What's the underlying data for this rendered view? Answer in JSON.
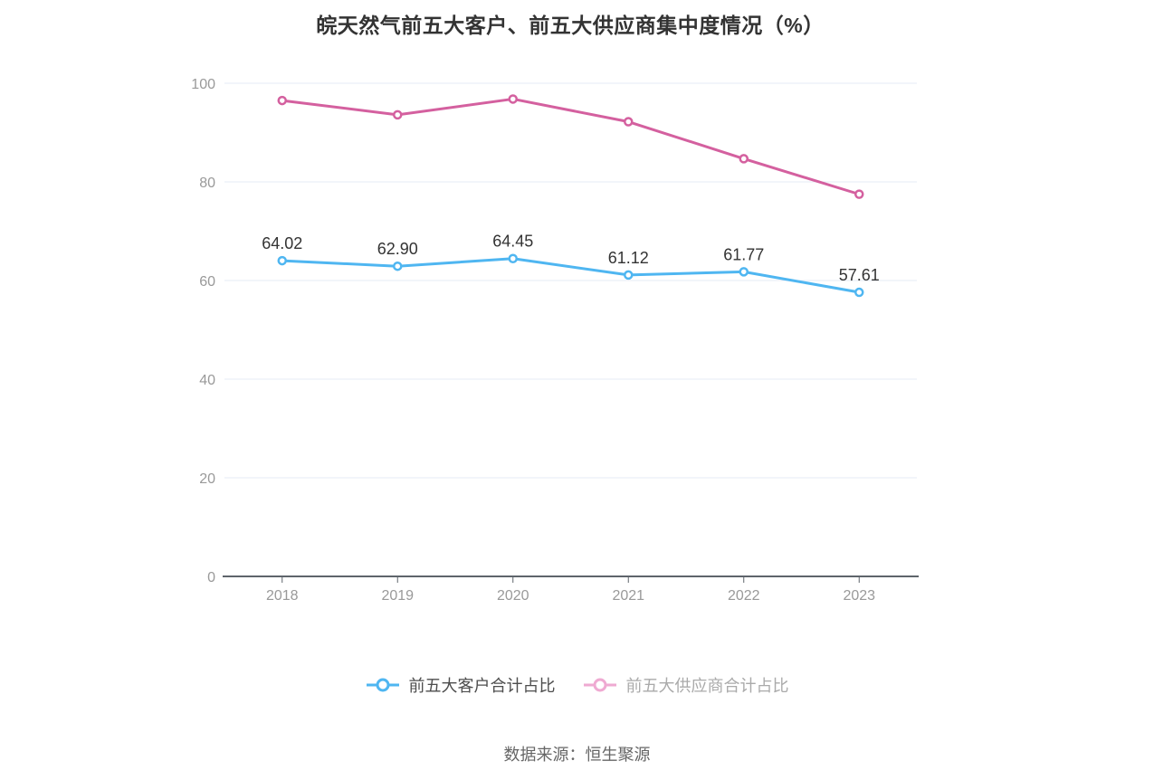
{
  "title": "皖天然气前五大客户、前五大供应商集中度情况（%）",
  "footer": {
    "source_label": "数据来源：恒生聚源"
  },
  "colors": {
    "background": "#ffffff",
    "title_text": "#333333",
    "grid_line": "#e6ebf5",
    "axis_line": "#5e646b",
    "axis_label": "#999999",
    "data_label": "#333333",
    "customer_line": "#4fb6f1",
    "supplier_line": "#d4609f",
    "legend_customer_marker": "#4fb6f1",
    "legend_supplier_marker": "#efaad2",
    "legend_customer_text": "#4d4d4d",
    "legend_supplier_text": "#aaaaaa",
    "footer_text": "#666666"
  },
  "legend": {
    "items": [
      {
        "label": "前五大客户合计占比",
        "marker_color": "#4fb6f1",
        "text_color": "#4d4d4d"
      },
      {
        "label": "前五大供应商合计占比",
        "marker_color": "#efaad2",
        "text_color": "#aaaaaa"
      }
    ]
  },
  "chart_data": {
    "type": "line",
    "title": "皖天然气前五大客户、前五大供应商集中度情况（%）",
    "categories": [
      "2018",
      "2019",
      "2020",
      "2021",
      "2022",
      "2023"
    ],
    "series": [
      {
        "name": "前五大客户合计占比",
        "color": "#4fb6f1",
        "values": [
          64.02,
          62.9,
          64.45,
          61.12,
          61.77,
          57.61
        ],
        "labels": [
          "64.02",
          "62.90",
          "64.45",
          "61.12",
          "61.77",
          "57.61"
        ],
        "labels_shown": true
      },
      {
        "name": "前五大供应商合计占比",
        "color": "#d4609f",
        "values": [
          96.5,
          93.6,
          96.8,
          92.2,
          84.7,
          77.5
        ],
        "values_estimated": true,
        "labels_shown": false
      }
    ],
    "xlabel": "",
    "ylabel": "",
    "ylim": [
      0,
      100
    ],
    "yticks": [
      0,
      20,
      40,
      60,
      80,
      100
    ],
    "grid": "horizontal",
    "legend_position": "bottom",
    "marker_style": "open-circle"
  }
}
